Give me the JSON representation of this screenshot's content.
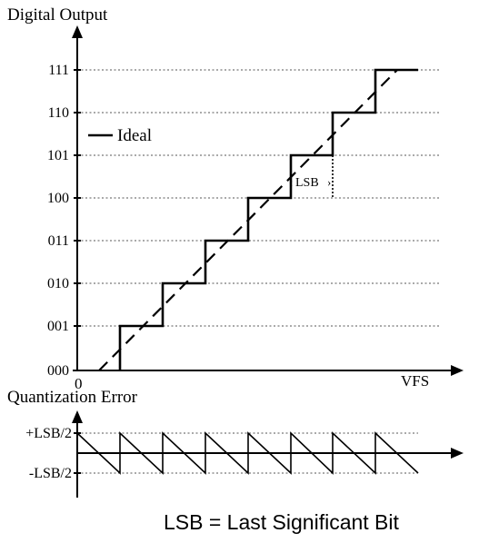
{
  "top_axis": {
    "y_title": "Digital Output",
    "x_end_label": "VFS",
    "origin_label": "0",
    "codes": [
      "000",
      "001",
      "010",
      "011",
      "100",
      "101",
      "110",
      "111"
    ]
  },
  "legend": {
    "label": "Ideal"
  },
  "lsb_annotation": {
    "label": "LSB"
  },
  "bottom_axis": {
    "title": "Quantization Error",
    "plus_label": "+LSB/2",
    "minus_label": "-LSB/2"
  },
  "footnote": "LSB = Last Significant Bit"
}
